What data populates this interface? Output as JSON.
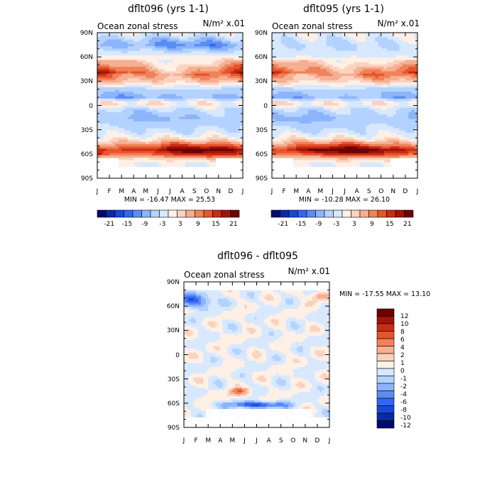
{
  "chart_data": [
    {
      "type": "heatmap",
      "title": "dflt096 (yrs 1-1)",
      "subtitle": "Ocean zonal stress",
      "units": "N/m² x.01",
      "x_ticks": [
        "J",
        "F",
        "M",
        "A",
        "M",
        "J",
        "J",
        "A",
        "S",
        "O",
        "N",
        "D",
        "J"
      ],
      "y_ticks": [
        "90N",
        "60N",
        "30N",
        "0",
        "30S",
        "60S",
        "90S"
      ],
      "stats": "MIN = -16.47 MAX =  25.53",
      "colorbar_labels": [
        "-21",
        "-15",
        "-9",
        "-3",
        "3",
        "9",
        "15",
        "21"
      ],
      "colors": [
        "#000a6e",
        "#0a2aa5",
        "#1449dc",
        "#3366f0",
        "#5a8cf5",
        "#8cb4fa",
        "#b4d2ff",
        "#d7e8ff",
        "#fff0e6",
        "#fad2be",
        "#f5af91",
        "#f0825a",
        "#e6552d",
        "#c82d14",
        "#a0140a",
        "#6e0000"
      ],
      "mean_profile": [
        {
          "lat": 90,
          "v": 0
        },
        {
          "lat": 75,
          "v": -9
        },
        {
          "lat": 62,
          "v": 0
        },
        {
          "lat": 50,
          "v": 6
        },
        {
          "lat": 40,
          "v": 12
        },
        {
          "lat": 30,
          "v": 6
        },
        {
          "lat": 20,
          "v": -4
        },
        {
          "lat": 10,
          "v": -7
        },
        {
          "lat": 3,
          "v": 3
        },
        {
          "lat": -5,
          "v": -3
        },
        {
          "lat": -15,
          "v": -6
        },
        {
          "lat": -25,
          "v": -4
        },
        {
          "lat": -35,
          "v": -1
        },
        {
          "lat": -42,
          "v": 3
        },
        {
          "lat": -50,
          "v": 13
        },
        {
          "lat": -55,
          "v": 20
        },
        {
          "lat": -60,
          "v": 15
        },
        {
          "lat": -67,
          "v": 3
        },
        {
          "lat": -72,
          "v": 0
        }
      ]
    },
    {
      "type": "heatmap",
      "title": "dflt095 (yrs 1-1)",
      "subtitle": "Ocean zonal stress",
      "units": "N/m² x.01",
      "x_ticks": [
        "J",
        "F",
        "M",
        "A",
        "M",
        "J",
        "J",
        "A",
        "S",
        "O",
        "N",
        "D",
        "J"
      ],
      "y_ticks": [
        "90N",
        "60N",
        "30N",
        "0",
        "30S",
        "60S",
        "90S"
      ],
      "stats": "MIN = -10.28 MAX =  26.10",
      "colorbar_labels": [
        "-21",
        "-15",
        "-9",
        "-3",
        "3",
        "9",
        "15",
        "21"
      ],
      "colors": [
        "#000a6e",
        "#0a2aa5",
        "#1449dc",
        "#3366f0",
        "#5a8cf5",
        "#8cb4fa",
        "#b4d2ff",
        "#d7e8ff",
        "#fff0e6",
        "#fad2be",
        "#f5af91",
        "#f0825a",
        "#e6552d",
        "#c82d14",
        "#a0140a",
        "#6e0000"
      ],
      "mean_profile": [
        {
          "lat": 90,
          "v": 0
        },
        {
          "lat": 75,
          "v": -3
        },
        {
          "lat": 62,
          "v": -1
        },
        {
          "lat": 50,
          "v": 6
        },
        {
          "lat": 40,
          "v": 11
        },
        {
          "lat": 30,
          "v": 5
        },
        {
          "lat": 20,
          "v": -4
        },
        {
          "lat": 10,
          "v": -7
        },
        {
          "lat": 3,
          "v": 3
        },
        {
          "lat": -5,
          "v": -3
        },
        {
          "lat": -15,
          "v": -6
        },
        {
          "lat": -25,
          "v": -4
        },
        {
          "lat": -35,
          "v": -1
        },
        {
          "lat": -42,
          "v": 3
        },
        {
          "lat": -50,
          "v": 13
        },
        {
          "lat": -55,
          "v": 21
        },
        {
          "lat": -60,
          "v": 15
        },
        {
          "lat": -67,
          "v": 3
        },
        {
          "lat": -72,
          "v": 0
        }
      ]
    },
    {
      "type": "heatmap",
      "title": "dflt096 - dflt095",
      "subtitle": "Ocean zonal stress",
      "units": "N/m² x.01",
      "x_ticks": [
        "J",
        "F",
        "M",
        "A",
        "M",
        "J",
        "J",
        "A",
        "S",
        "O",
        "N",
        "D",
        "J"
      ],
      "y_ticks": [
        "90N",
        "60N",
        "30N",
        "0",
        "30S",
        "60S",
        "90S"
      ],
      "stats": "MIN = -17.55 MAX =  13.10",
      "colorbar_labels": [
        "12",
        "10",
        "8",
        "6",
        "4",
        "2",
        "1",
        "0",
        "-1",
        "-2",
        "-4",
        "-6",
        "-8",
        "-10",
        "-12"
      ],
      "colors": [
        "#6e0000",
        "#a0140a",
        "#c82d14",
        "#e6552d",
        "#f0825a",
        "#f5af91",
        "#fad2be",
        "#fff0e6",
        "#d7e8ff",
        "#b4d2ff",
        "#8cb4fa",
        "#5a8cf5",
        "#3366f0",
        "#1449dc",
        "#0a2aa5",
        "#000a6e"
      ]
    }
  ]
}
